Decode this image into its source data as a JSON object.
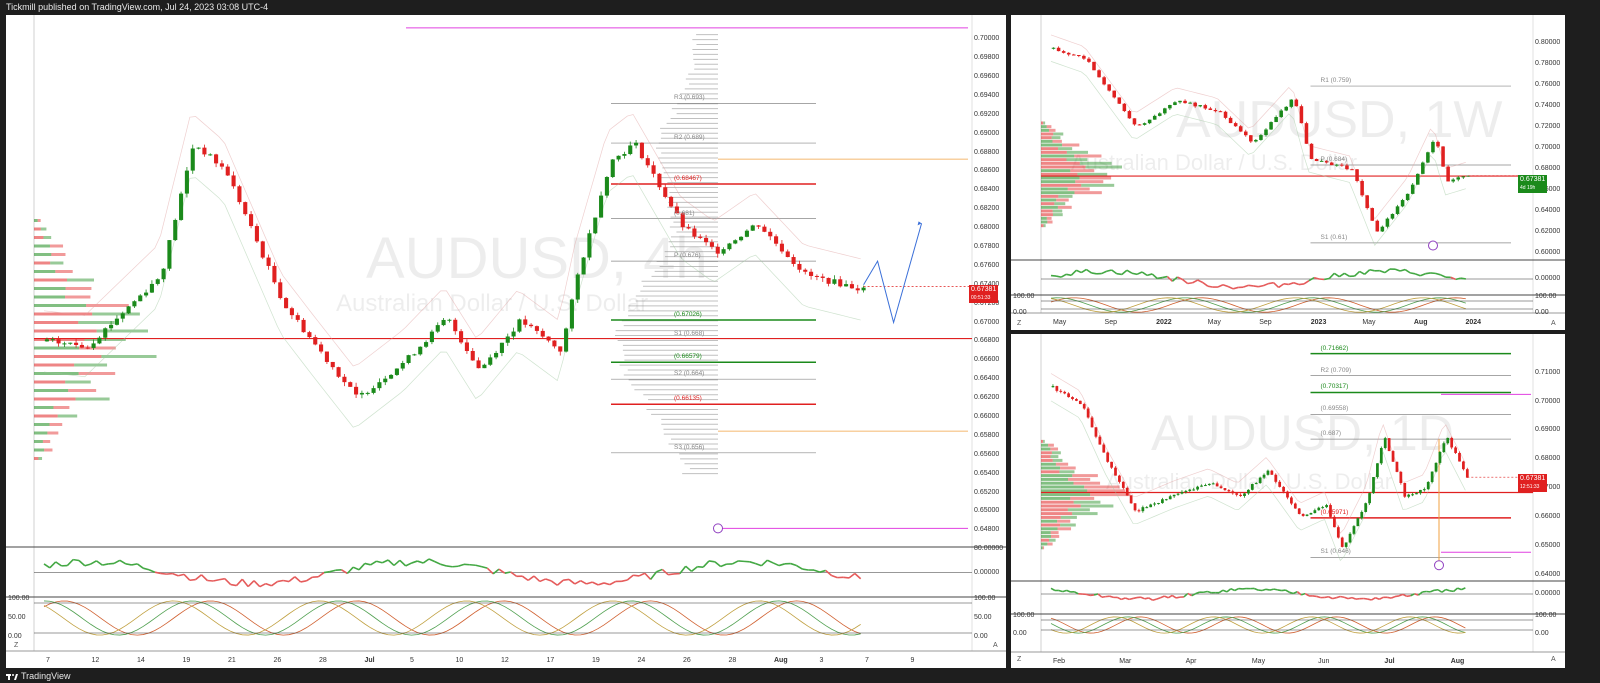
{
  "header": {
    "publish_text": "Tickmill published on TradingView.com, Jul 24, 2023 03:08 UTC-4"
  },
  "footer": {
    "brand": "TradingView"
  },
  "colors": {
    "up": "#1b8a1b",
    "down": "#e02020",
    "bg": "#ffffff",
    "frame": "#1e1e1e",
    "pivot": "#888888",
    "magenta": "#e040e0",
    "orange": "#f0a040"
  },
  "chart_data": [
    {
      "type": "candlestick",
      "symbol_watermark": "AUDUSD, 4h",
      "subtitle_watermark": "Australian Dollar / U.S. Dollar",
      "y_ticks": [
        "0.70000",
        "0.69800",
        "0.69600",
        "0.69400",
        "0.69200",
        "0.69000",
        "0.68800",
        "0.68600",
        "0.68400",
        "0.68200",
        "0.68000",
        "0.67800",
        "0.67600",
        "0.67400",
        "0.67200",
        "0.67000",
        "0.66800",
        "0.66600",
        "0.66400",
        "0.66200",
        "0.66000",
        "0.65800",
        "0.65600",
        "0.65400",
        "0.65200",
        "0.65000",
        "0.64800"
      ],
      "ylim": [
        0.6475,
        0.7015
      ],
      "x_ticks": [
        "7",
        "12",
        "14",
        "19",
        "21",
        "26",
        "28",
        "Jul",
        "5",
        "10",
        "12",
        "17",
        "19",
        "24",
        "26",
        "28",
        "Aug",
        "3",
        "7",
        "9"
      ],
      "last_price": "0.67381",
      "last_price_sub": "00:51:33",
      "levels": [
        {
          "label": "R3 (0.693)",
          "value": 0.6932,
          "color": "#888888"
        },
        {
          "label": "R2 (0.689)",
          "value": 0.689,
          "color": "#888888"
        },
        {
          "label": "(0.68467)",
          "value": 0.68467,
          "color": "#e02020"
        },
        {
          "label": "(0.681)",
          "value": 0.681,
          "color": "#888888"
        },
        {
          "label": "P (0.676)",
          "value": 0.6765,
          "color": "#888888"
        },
        {
          "label": "(0.67026)",
          "value": 0.67026,
          "color": "#1b8a1b"
        },
        {
          "label": "S1 (0.668)",
          "value": 0.6683,
          "color": "#888888"
        },
        {
          "label": "(0.66579)",
          "value": 0.66579,
          "color": "#1b8a1b"
        },
        {
          "label": "S2 (0.664)",
          "value": 0.664,
          "color": "#888888"
        },
        {
          "label": "(0.66135)",
          "value": 0.66135,
          "color": "#e02020"
        },
        {
          "label": "S3 (0.656)",
          "value": 0.6562,
          "color": "#888888"
        }
      ],
      "osc1_ticks": [
        "80.00000",
        "0.00000"
      ],
      "osc2_ticks": [
        "100.00",
        "50.00",
        "0.00"
      ]
    },
    {
      "type": "candlestick",
      "symbol_watermark": "AUDUSD, 1W",
      "subtitle_watermark": "Australian Dollar / U.S. Dollar",
      "y_ticks": [
        "0.80000",
        "0.78000",
        "0.76000",
        "0.74000",
        "0.72000",
        "0.70000",
        "0.68000",
        "0.66000",
        "0.64000",
        "0.62000",
        "0.60000"
      ],
      "ylim": [
        0.5985,
        0.8075
      ],
      "x_ticks": [
        "May",
        "Sep",
        "2022",
        "May",
        "Sep",
        "2023",
        "May",
        "Aug",
        "2024"
      ],
      "last_price": "0.67381",
      "last_price_sub": "4d 19h",
      "levels": [
        {
          "label": "R1 (0.759)",
          "value": 0.759,
          "color": "#888888"
        },
        {
          "label": "P (0.684)",
          "value": 0.684,
          "color": "#888888"
        },
        {
          "label": "S1 (0.61)",
          "value": 0.61,
          "color": "#888888"
        }
      ],
      "osc1_ticks": [
        "0.00000"
      ],
      "osc2_ticks": [
        "100.00",
        "0.00"
      ]
    },
    {
      "type": "candlestick",
      "symbol_watermark": "AUDUSD, 1D",
      "subtitle_watermark": "Australian Dollar / U.S. Dollar",
      "y_ticks": [
        "0.71000",
        "0.70000",
        "0.69000",
        "0.68000",
        "0.67000",
        "0.66000",
        "0.65000",
        "0.64000"
      ],
      "ylim": [
        0.6375,
        0.7165
      ],
      "x_ticks": [
        "Feb",
        "Mar",
        "Apr",
        "May",
        "Jun",
        "Jul",
        "Aug"
      ],
      "last_price": "0.67381",
      "last_price_sub": "12:51:33",
      "levels": [
        {
          "label": "(0.71662)",
          "value": 0.71662,
          "color": "#1b8a1b"
        },
        {
          "label": "R2 (0.709)",
          "value": 0.709,
          "color": "#888888"
        },
        {
          "label": "(0.70317)",
          "value": 0.70317,
          "color": "#1b8a1b"
        },
        {
          "label": "(0.69558)",
          "value": 0.69558,
          "color": "#888888"
        },
        {
          "label": "(0.687)",
          "value": 0.687,
          "color": "#888888"
        },
        {
          "label": "(0.65971)",
          "value": 0.65971,
          "color": "#e02020"
        },
        {
          "label": "S1 (0.646)",
          "value": 0.646,
          "color": "#888888"
        }
      ],
      "osc1_ticks": [
        "0.00000"
      ],
      "osc2_ticks": [
        "100.00",
        "0.00"
      ]
    }
  ]
}
